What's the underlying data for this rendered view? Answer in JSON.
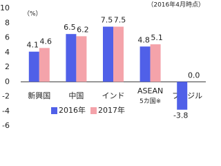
{
  "chart_data": {
    "type": "bar",
    "title": "（2016年4月時点）",
    "y_label": "（%）",
    "categories": [
      "新興国",
      "中国",
      "インド",
      "ASEAN\n5カ国※",
      "ブラジル"
    ],
    "series": [
      {
        "name": "2016年",
        "color": "#5060e8",
        "values": [
          4.1,
          6.5,
          7.5,
          4.8,
          -3.8
        ],
        "value_labels": [
          "4.1",
          "6.5",
          "7.5",
          "4.8",
          "-3.8"
        ]
      },
      {
        "name": "2017年",
        "color": "#f4a3aa",
        "values": [
          4.6,
          6.2,
          7.5,
          5.1,
          0.0
        ],
        "value_labels": [
          "4.6",
          "6.2",
          "7.5",
          "5.1",
          "0.0"
        ]
      }
    ],
    "negative_label_color": "#e03030",
    "ylim": [
      -6,
      10
    ],
    "yticks": [
      -6,
      -4,
      -2,
      0,
      2,
      4,
      6,
      8,
      10
    ],
    "grid": false,
    "legend": "lower left"
  }
}
